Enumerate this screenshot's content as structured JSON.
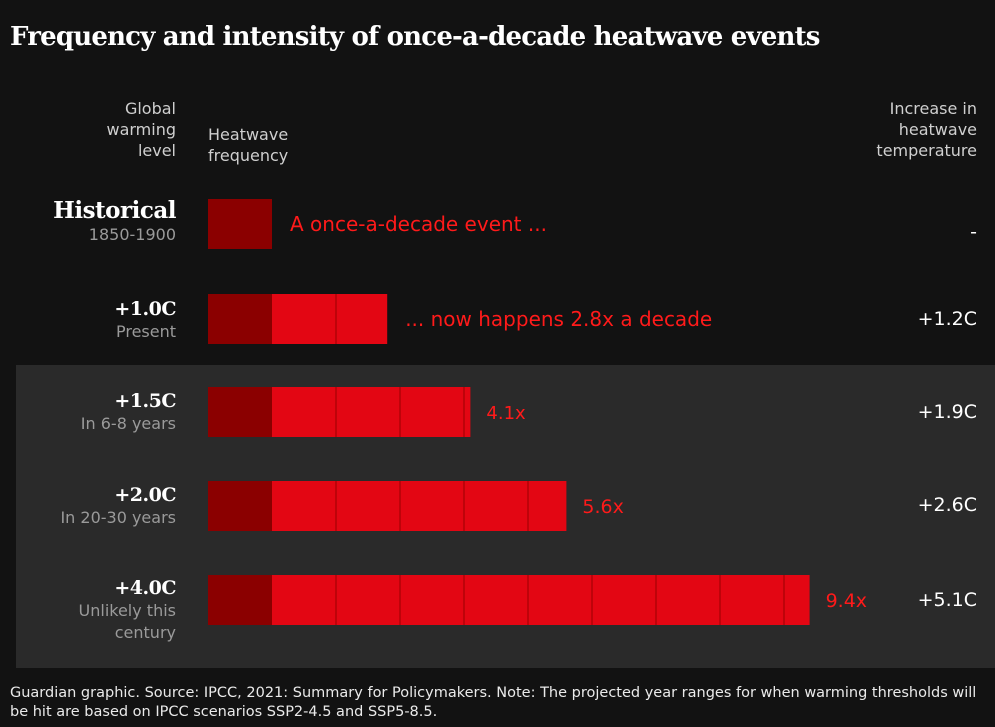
{
  "title": "Frequency and intensity of once-a-decade heatwave events",
  "headers": {
    "level": [
      "Global",
      "warming",
      "level"
    ],
    "frequency": [
      "Heatwave",
      "frequency"
    ],
    "temperature": [
      "Increase in",
      "heatwave",
      "temperature"
    ]
  },
  "chart_data": {
    "type": "bar",
    "categories": [
      "Historical",
      "+1.0C",
      "+1.5C",
      "+2.0C",
      "+4.0C"
    ],
    "sublabels": [
      [
        "1850-1900"
      ],
      [
        "Present"
      ],
      [
        "In 6-8 years"
      ],
      [
        "In 20-30 years"
      ],
      [
        "Unlikely this",
        "century"
      ]
    ],
    "values": [
      1,
      2.8,
      4.1,
      5.6,
      9.4
    ],
    "annotations": [
      "A once-a-decade event ...",
      "... now happens 2.8x a decade",
      "4.1x",
      "5.6x",
      "9.4x"
    ],
    "temperature_increase": [
      "-",
      "+1.2C",
      "+1.9C",
      "+2.6C",
      "+5.1C"
    ],
    "colors": {
      "historical": "#8b0000",
      "increase": "#e30613",
      "annotation": "#ff1a1a",
      "grid": "#9a0000"
    }
  },
  "footnote": "Guardian graphic. Source: IPCC, 2021: Summary for Policymakers. Note: The projected year ranges for when warming thresholds will be hit are based on IPCC scenarios SSP2-4.5 and SSP5-8.5."
}
